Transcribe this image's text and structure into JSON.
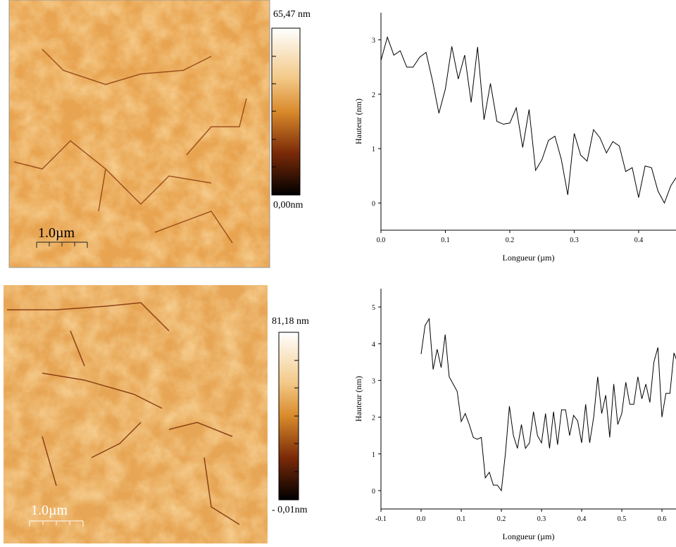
{
  "chart_data": [
    {
      "type": "line",
      "ylabel": "Hauteur (nm)",
      "xlabel": "Longueur (µm)",
      "xlim": [
        0,
        0.458
      ],
      "ylim": [
        -0.5,
        3.5
      ],
      "xticks": [
        {
          "value": 0,
          "label": "0.0"
        },
        0.1,
        0.2,
        0.3,
        0.4
      ],
      "yticks": [
        0,
        1,
        2,
        3
      ],
      "x": [
        0,
        0.01,
        0.02,
        0.03,
        0.04,
        0.05,
        0.06,
        0.07,
        0.08,
        0.09,
        0.1,
        0.11,
        0.12,
        0.13,
        0.14,
        0.15,
        0.16,
        0.17,
        0.18,
        0.19,
        0.2,
        0.21,
        0.22,
        0.23,
        0.24,
        0.25,
        0.26,
        0.27,
        0.28,
        0.29,
        0.3,
        0.31,
        0.32,
        0.33,
        0.34,
        0.35,
        0.36,
        0.37,
        0.38,
        0.39,
        0.4,
        0.41,
        0.42,
        0.43,
        0.44,
        0.45,
        0.46
      ],
      "values": [
        2.62,
        3.05,
        2.72,
        2.8,
        2.5,
        2.5,
        2.68,
        2.77,
        2.25,
        1.65,
        2.1,
        2.88,
        2.28,
        2.72,
        1.85,
        2.87,
        1.53,
        2.2,
        1.5,
        1.45,
        1.47,
        1.75,
        1.02,
        1.72,
        0.6,
        0.8,
        1.15,
        1.23,
        0.8,
        0.15,
        1.28,
        0.88,
        0.77,
        1.35,
        1.2,
        0.92,
        1.13,
        1.05,
        0.58,
        0.65,
        0.1,
        0.68,
        0.65,
        0.22,
        0.0,
        0.32,
        0.5
      ],
      "color": "#000000"
    },
    {
      "type": "line",
      "ylabel": "Hauteur (nm)",
      "xlabel": "Longueur (µm)",
      "xlim": [
        -0.1,
        0.635
      ],
      "ylim": [
        -0.5,
        5.5
      ],
      "xticks": [
        -0.1,
        {
          "value": 0,
          "label": "0.0"
        },
        0.1,
        0.2,
        0.3,
        0.4,
        0.5,
        0.6
      ],
      "yticks": [
        0,
        1,
        2,
        3,
        4,
        5
      ],
      "x": [
        0,
        0.01,
        0.02,
        0.03,
        0.04,
        0.05,
        0.06,
        0.07,
        0.08,
        0.09,
        0.1,
        0.11,
        0.12,
        0.13,
        0.14,
        0.15,
        0.16,
        0.17,
        0.18,
        0.19,
        0.2,
        0.21,
        0.22,
        0.23,
        0.24,
        0.25,
        0.26,
        0.27,
        0.28,
        0.29,
        0.3,
        0.31,
        0.32,
        0.33,
        0.34,
        0.35,
        0.36,
        0.37,
        0.38,
        0.39,
        0.4,
        0.41,
        0.42,
        0.43,
        0.44,
        0.45,
        0.46,
        0.47,
        0.48,
        0.49,
        0.5,
        0.51,
        0.52,
        0.53,
        0.54,
        0.55,
        0.56,
        0.57,
        0.58,
        0.59,
        0.6,
        0.61,
        0.62,
        0.63,
        0.64
      ],
      "values": [
        3.72,
        4.5,
        4.68,
        3.3,
        3.85,
        3.35,
        4.25,
        3.1,
        2.9,
        2.7,
        1.88,
        2.1,
        1.8,
        1.45,
        1.4,
        1.45,
        0.35,
        0.5,
        0.15,
        0.15,
        0.0,
        1.0,
        2.3,
        1.5,
        1.15,
        1.8,
        1.15,
        1.3,
        2.15,
        1.5,
        1.3,
        2.1,
        1.15,
        2.15,
        1.25,
        2.2,
        2.2,
        1.5,
        2.05,
        1.9,
        1.3,
        2.35,
        1.3,
        2.0,
        3.1,
        2.1,
        2.6,
        1.45,
        2.9,
        1.8,
        2.1,
        2.95,
        2.35,
        2.35,
        3.1,
        2.5,
        2.9,
        2.4,
        3.5,
        3.9,
        2.0,
        2.65,
        2.65,
        3.75,
        3.45
      ],
      "color": "#000000"
    }
  ],
  "images": [
    {
      "colorbar_max": "65,47 nm",
      "colorbar_min": "0,00nm",
      "scale_bar": "1.0µm"
    },
    {
      "colorbar_max": "81,18 nm",
      "colorbar_min": "- 0,01nm",
      "scale_bar": "1.0µm"
    }
  ]
}
